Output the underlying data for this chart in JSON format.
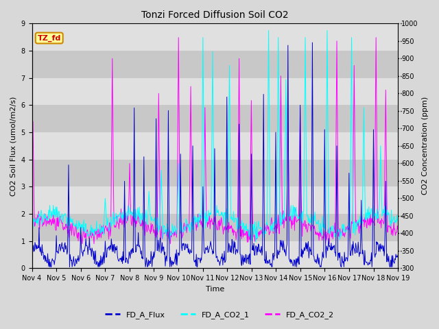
{
  "title": "Tonzi Forced Diffusion Soil CO2",
  "xlabel": "Time",
  "ylabel_left": "CO2 Soil Flux (umol/m2/s)",
  "ylabel_right": "CO2 Concentration (ppm)",
  "ylim_left": [
    0.0,
    9.0
  ],
  "ylim_right": [
    300,
    1000
  ],
  "n_days": 15,
  "xtick_labels": [
    "Nov 4",
    "Nov 5",
    "Nov 6",
    "Nov 7",
    "Nov 8",
    "Nov 9",
    "Nov 10",
    "Nov 11",
    "Nov 12",
    "Nov 13",
    "Nov 14",
    "Nov 15",
    "Nov 16",
    "Nov 17",
    "Nov 18",
    "Nov 19"
  ],
  "legend_label": "TZ_fd",
  "legend_box_color": "#ffff99",
  "legend_box_edge": "#cc8800",
  "legend_text_color": "#cc0000",
  "flux_color": "#0000cc",
  "co2_1_color": "#00ffff",
  "co2_2_color": "#ff00ff",
  "fig_facecolor": "#d8d8d8",
  "axes_facecolor": "#e8e8e8",
  "flux_linewidth": 0.7,
  "co2_linewidth": 0.7,
  "ytick_left": [
    0.0,
    1.0,
    2.0,
    3.0,
    4.0,
    5.0,
    6.0,
    7.0,
    8.0,
    9.0
  ],
  "ytick_right": [
    300,
    350,
    400,
    450,
    500,
    550,
    600,
    650,
    700,
    750,
    800,
    850,
    900,
    950,
    1000
  ],
  "band_colors": [
    "#e0e0e0",
    "#c8c8c8"
  ],
  "title_fontsize": 10,
  "label_fontsize": 8,
  "tick_fontsize": 7,
  "legend_fontsize": 8
}
